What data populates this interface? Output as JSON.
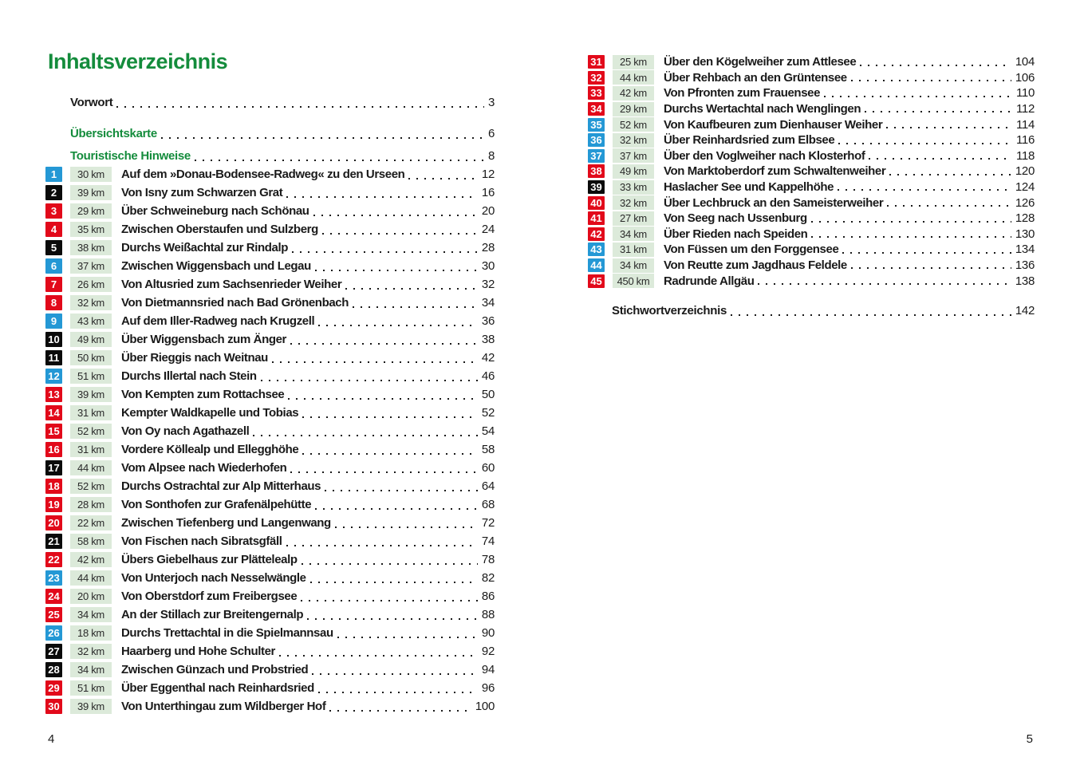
{
  "colors": {
    "accent_green": "#148c3c",
    "badge_red": "#e2091a",
    "badge_blue": "#2498d5",
    "badge_black": "#0a0a0a",
    "km_box_bg": "#dceada"
  },
  "left_page": {
    "title": "Inhaltsverzeichnis",
    "page_number": "4",
    "front_items": [
      {
        "label": "Vorwort",
        "style": "black",
        "page": "3"
      },
      {
        "label": "Übersichtskarte",
        "style": "green",
        "page": "6"
      },
      {
        "label": "Touristische Hinweise",
        "style": "green",
        "page": "8"
      }
    ],
    "entries": [
      {
        "num": "1",
        "color": "blue",
        "km": "30 km",
        "title": "Auf dem »Donau-Bodensee-Radweg« zu den Urseen",
        "page": "12"
      },
      {
        "num": "2",
        "color": "black",
        "km": "39 km",
        "title": "Von Isny zum Schwarzen Grat",
        "page": "16"
      },
      {
        "num": "3",
        "color": "red",
        "km": "29 km",
        "title": "Über Schweineburg nach Schönau",
        "page": "20"
      },
      {
        "num": "4",
        "color": "red",
        "km": "35 km",
        "title": "Zwischen Oberstaufen und Sulzberg",
        "page": "24"
      },
      {
        "num": "5",
        "color": "black",
        "km": "38 km",
        "title": "Durchs Weißachtal zur Rindalp",
        "page": "28"
      },
      {
        "num": "6",
        "color": "blue",
        "km": "37 km",
        "title": "Zwischen Wiggensbach und Legau",
        "page": "30"
      },
      {
        "num": "7",
        "color": "red",
        "km": "26 km",
        "title": "Von Altusried zum Sachsenrieder Weiher",
        "page": "32"
      },
      {
        "num": "8",
        "color": "red",
        "km": "32 km",
        "title": "Von Dietmannsried nach Bad Grönenbach",
        "page": "34"
      },
      {
        "num": "9",
        "color": "blue",
        "km": "43 km",
        "title": "Auf dem Iller-Radweg nach Krugzell",
        "page": "36"
      },
      {
        "num": "10",
        "color": "black",
        "km": "49 km",
        "title": "Über Wiggensbach zum Änger",
        "page": "38"
      },
      {
        "num": "11",
        "color": "black",
        "km": "50 km",
        "title": "Über Rieggis nach Weitnau",
        "page": "42"
      },
      {
        "num": "12",
        "color": "blue",
        "km": "51 km",
        "title": "Durchs Illertal nach Stein",
        "page": "46"
      },
      {
        "num": "13",
        "color": "red",
        "km": "39 km",
        "title": "Von Kempten zum Rottachsee",
        "page": "50"
      },
      {
        "num": "14",
        "color": "red",
        "km": "31 km",
        "title": "Kempter Waldkapelle und Tobias",
        "page": "52"
      },
      {
        "num": "15",
        "color": "red",
        "km": "52 km",
        "title": "Von Oy nach Agathazell",
        "page": "54"
      },
      {
        "num": "16",
        "color": "red",
        "km": "31 km",
        "title": "Vordere Köllealp und Ellegghöhe",
        "page": "58"
      },
      {
        "num": "17",
        "color": "black",
        "km": "44 km",
        "title": "Vom Alpsee nach Wiederhofen",
        "page": "60"
      },
      {
        "num": "18",
        "color": "red",
        "km": "52 km",
        "title": "Durchs Ostrachtal zur Alp Mitterhaus",
        "page": "64"
      },
      {
        "num": "19",
        "color": "red",
        "km": "28 km",
        "title": "Von Sonthofen zur Grafenälpehütte",
        "page": "68"
      },
      {
        "num": "20",
        "color": "red",
        "km": "22 km",
        "title": "Zwischen Tiefenberg und Langenwang",
        "page": "72"
      },
      {
        "num": "21",
        "color": "black",
        "km": "58 km",
        "title": "Von Fischen nach Sibratsgfäll",
        "page": "74"
      },
      {
        "num": "22",
        "color": "red",
        "km": "42 km",
        "title": "Übers Giebelhaus zur Plättelealp",
        "page": "78"
      },
      {
        "num": "23",
        "color": "blue",
        "km": "44 km",
        "title": "Von Unterjoch nach Nesselwängle",
        "page": "82"
      },
      {
        "num": "24",
        "color": "red",
        "km": "20 km",
        "title": "Von Oberstdorf zum Freibergsee",
        "page": "86"
      },
      {
        "num": "25",
        "color": "red",
        "km": "34 km",
        "title": "An der Stillach zur Breitengernalp",
        "page": "88"
      },
      {
        "num": "26",
        "color": "blue",
        "km": "18 km",
        "title": "Durchs Trettachtal in die Spielmannsau",
        "page": "90"
      },
      {
        "num": "27",
        "color": "black",
        "km": "32 km",
        "title": "Haarberg und Hohe Schulter",
        "page": "92"
      },
      {
        "num": "28",
        "color": "black",
        "km": "34 km",
        "title": "Zwischen Günzach und Probstried",
        "page": "94"
      },
      {
        "num": "29",
        "color": "red",
        "km": "51 km",
        "title": "Über Eggenthal nach Reinhardsried",
        "page": "96"
      },
      {
        "num": "30",
        "color": "red",
        "km": "39 km",
        "title": "Von Unterthingau zum Wildberger Hof",
        "page": "100"
      }
    ]
  },
  "right_page": {
    "page_number": "5",
    "entries": [
      {
        "num": "31",
        "color": "red",
        "km": "25 km",
        "title": "Über den Kögelweiher zum Attlesee",
        "page": "104"
      },
      {
        "num": "32",
        "color": "red",
        "km": "44 km",
        "title": "Über Rehbach an den Grüntensee",
        "page": "106"
      },
      {
        "num": "33",
        "color": "red",
        "km": "42 km",
        "title": "Von Pfronten zum Frauensee",
        "page": "110"
      },
      {
        "num": "34",
        "color": "red",
        "km": "29 km",
        "title": "Durchs Wertachtal nach Wenglingen",
        "page": "112"
      },
      {
        "num": "35",
        "color": "blue",
        "km": "52 km",
        "title": "Von Kaufbeuren zum Dienhauser Weiher",
        "page": "114"
      },
      {
        "num": "36",
        "color": "blue",
        "km": "32 km",
        "title": "Über Reinhardsried zum Elbsee",
        "page": "116"
      },
      {
        "num": "37",
        "color": "blue",
        "km": "37 km",
        "title": "Über den Voglweiher nach Klosterhof",
        "page": "118"
      },
      {
        "num": "38",
        "color": "red",
        "km": "49 km",
        "title": "Von Marktoberdorf zum Schwaltenweiher",
        "page": "120"
      },
      {
        "num": "39",
        "color": "black",
        "km": "33 km",
        "title": "Haslacher See und Kappelhöhe",
        "page": "124"
      },
      {
        "num": "40",
        "color": "red",
        "km": "32 km",
        "title": "Über Lechbruck an den Sameisterweiher",
        "page": "126"
      },
      {
        "num": "41",
        "color": "red",
        "km": "27 km",
        "title": "Von Seeg nach Ussenburg",
        "page": "128"
      },
      {
        "num": "42",
        "color": "red",
        "km": "34 km",
        "title": "Über Rieden nach Speiden",
        "page": "130"
      },
      {
        "num": "43",
        "color": "blue",
        "km": "31 km",
        "title": "Von Füssen um den Forggensee",
        "page": "134"
      },
      {
        "num": "44",
        "color": "blue",
        "km": "34 km",
        "title": "Von Reutte zum Jagdhaus Feldele",
        "page": "136"
      },
      {
        "num": "45",
        "color": "red",
        "km": "450 km",
        "title": "Radrunde Allgäu",
        "page": "138"
      }
    ],
    "index_item": {
      "label": "Stichwortverzeichnis",
      "page": "142"
    }
  }
}
